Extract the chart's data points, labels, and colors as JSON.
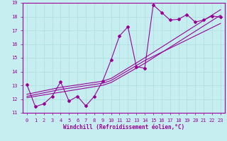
{
  "xlabel": "Windchill (Refroidissement éolien,°C)",
  "xlim": [
    -0.5,
    23.5
  ],
  "ylim": [
    11,
    19
  ],
  "yticks": [
    11,
    12,
    13,
    14,
    15,
    16,
    17,
    18,
    19
  ],
  "xticks": [
    0,
    1,
    2,
    3,
    4,
    5,
    6,
    7,
    8,
    9,
    10,
    11,
    12,
    13,
    14,
    15,
    16,
    17,
    18,
    19,
    20,
    21,
    22,
    23
  ],
  "bg_color": "#c6eef0",
  "line_color": "#990099",
  "grid_color": "#aadddd",
  "series1_x": [
    0,
    1,
    2,
    3,
    4,
    5,
    6,
    7,
    8,
    9,
    10,
    11,
    12,
    13,
    14,
    15,
    16,
    17,
    18,
    19,
    20,
    21,
    22,
    23
  ],
  "series1_y": [
    13.05,
    11.45,
    11.65,
    12.2,
    13.25,
    11.85,
    12.2,
    11.5,
    12.2,
    13.3,
    14.85,
    16.6,
    17.25,
    14.35,
    14.25,
    18.85,
    18.3,
    17.75,
    17.8,
    18.15,
    17.6,
    17.75,
    18.05,
    17.95
  ],
  "series2_x": [
    0,
    4,
    9,
    10,
    14,
    23
  ],
  "series2_y": [
    12.1,
    12.5,
    13.0,
    13.2,
    14.6,
    18.1
  ],
  "series3_x": [
    0,
    4,
    9,
    10,
    14,
    23
  ],
  "series3_y": [
    12.2,
    12.7,
    13.15,
    13.35,
    14.8,
    17.5
  ],
  "series4_x": [
    0,
    4,
    9,
    10,
    14,
    23
  ],
  "series4_y": [
    12.35,
    12.85,
    13.3,
    13.5,
    15.0,
    18.5
  ]
}
